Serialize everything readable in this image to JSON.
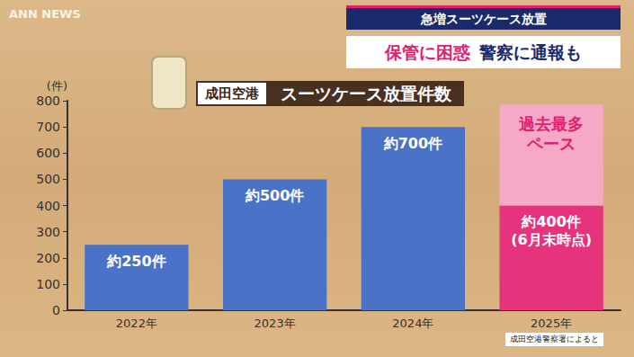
{
  "header": {
    "logo": "ANN NEWS",
    "title": "急増スーツケース放置",
    "headline": [
      "保管に困惑",
      "警察に通報も"
    ]
  },
  "chart_data": {
    "type": "bar",
    "subtitle": "成田空港",
    "title": "スーツケース放置件数",
    "ylabel": "(件)",
    "source": "成田空港警察署によると",
    "categories": [
      "2022年",
      "2023年",
      "2024年",
      "2025年"
    ],
    "series": [
      {
        "values": [
          250,
          500,
          700,
          400
        ],
        "colors": [
          "#4a72c6",
          "#4a72c6",
          "#4a72c6",
          "#e5337c"
        ],
        "value_labels": [
          "約250件",
          "約500件",
          "約700件",
          "約400件\n(6月末時点)"
        ]
      },
      {
        "name": "過去最多\nペース",
        "values": [
          null,
          null,
          null,
          385
        ],
        "color": "#f5a9c6"
      }
    ],
    "stacked": true,
    "data_labels": true,
    "ylim": [
      0,
      800
    ],
    "yticks": [
      0,
      100,
      200,
      300,
      400,
      500,
      600,
      700,
      800
    ],
    "grid": false
  }
}
